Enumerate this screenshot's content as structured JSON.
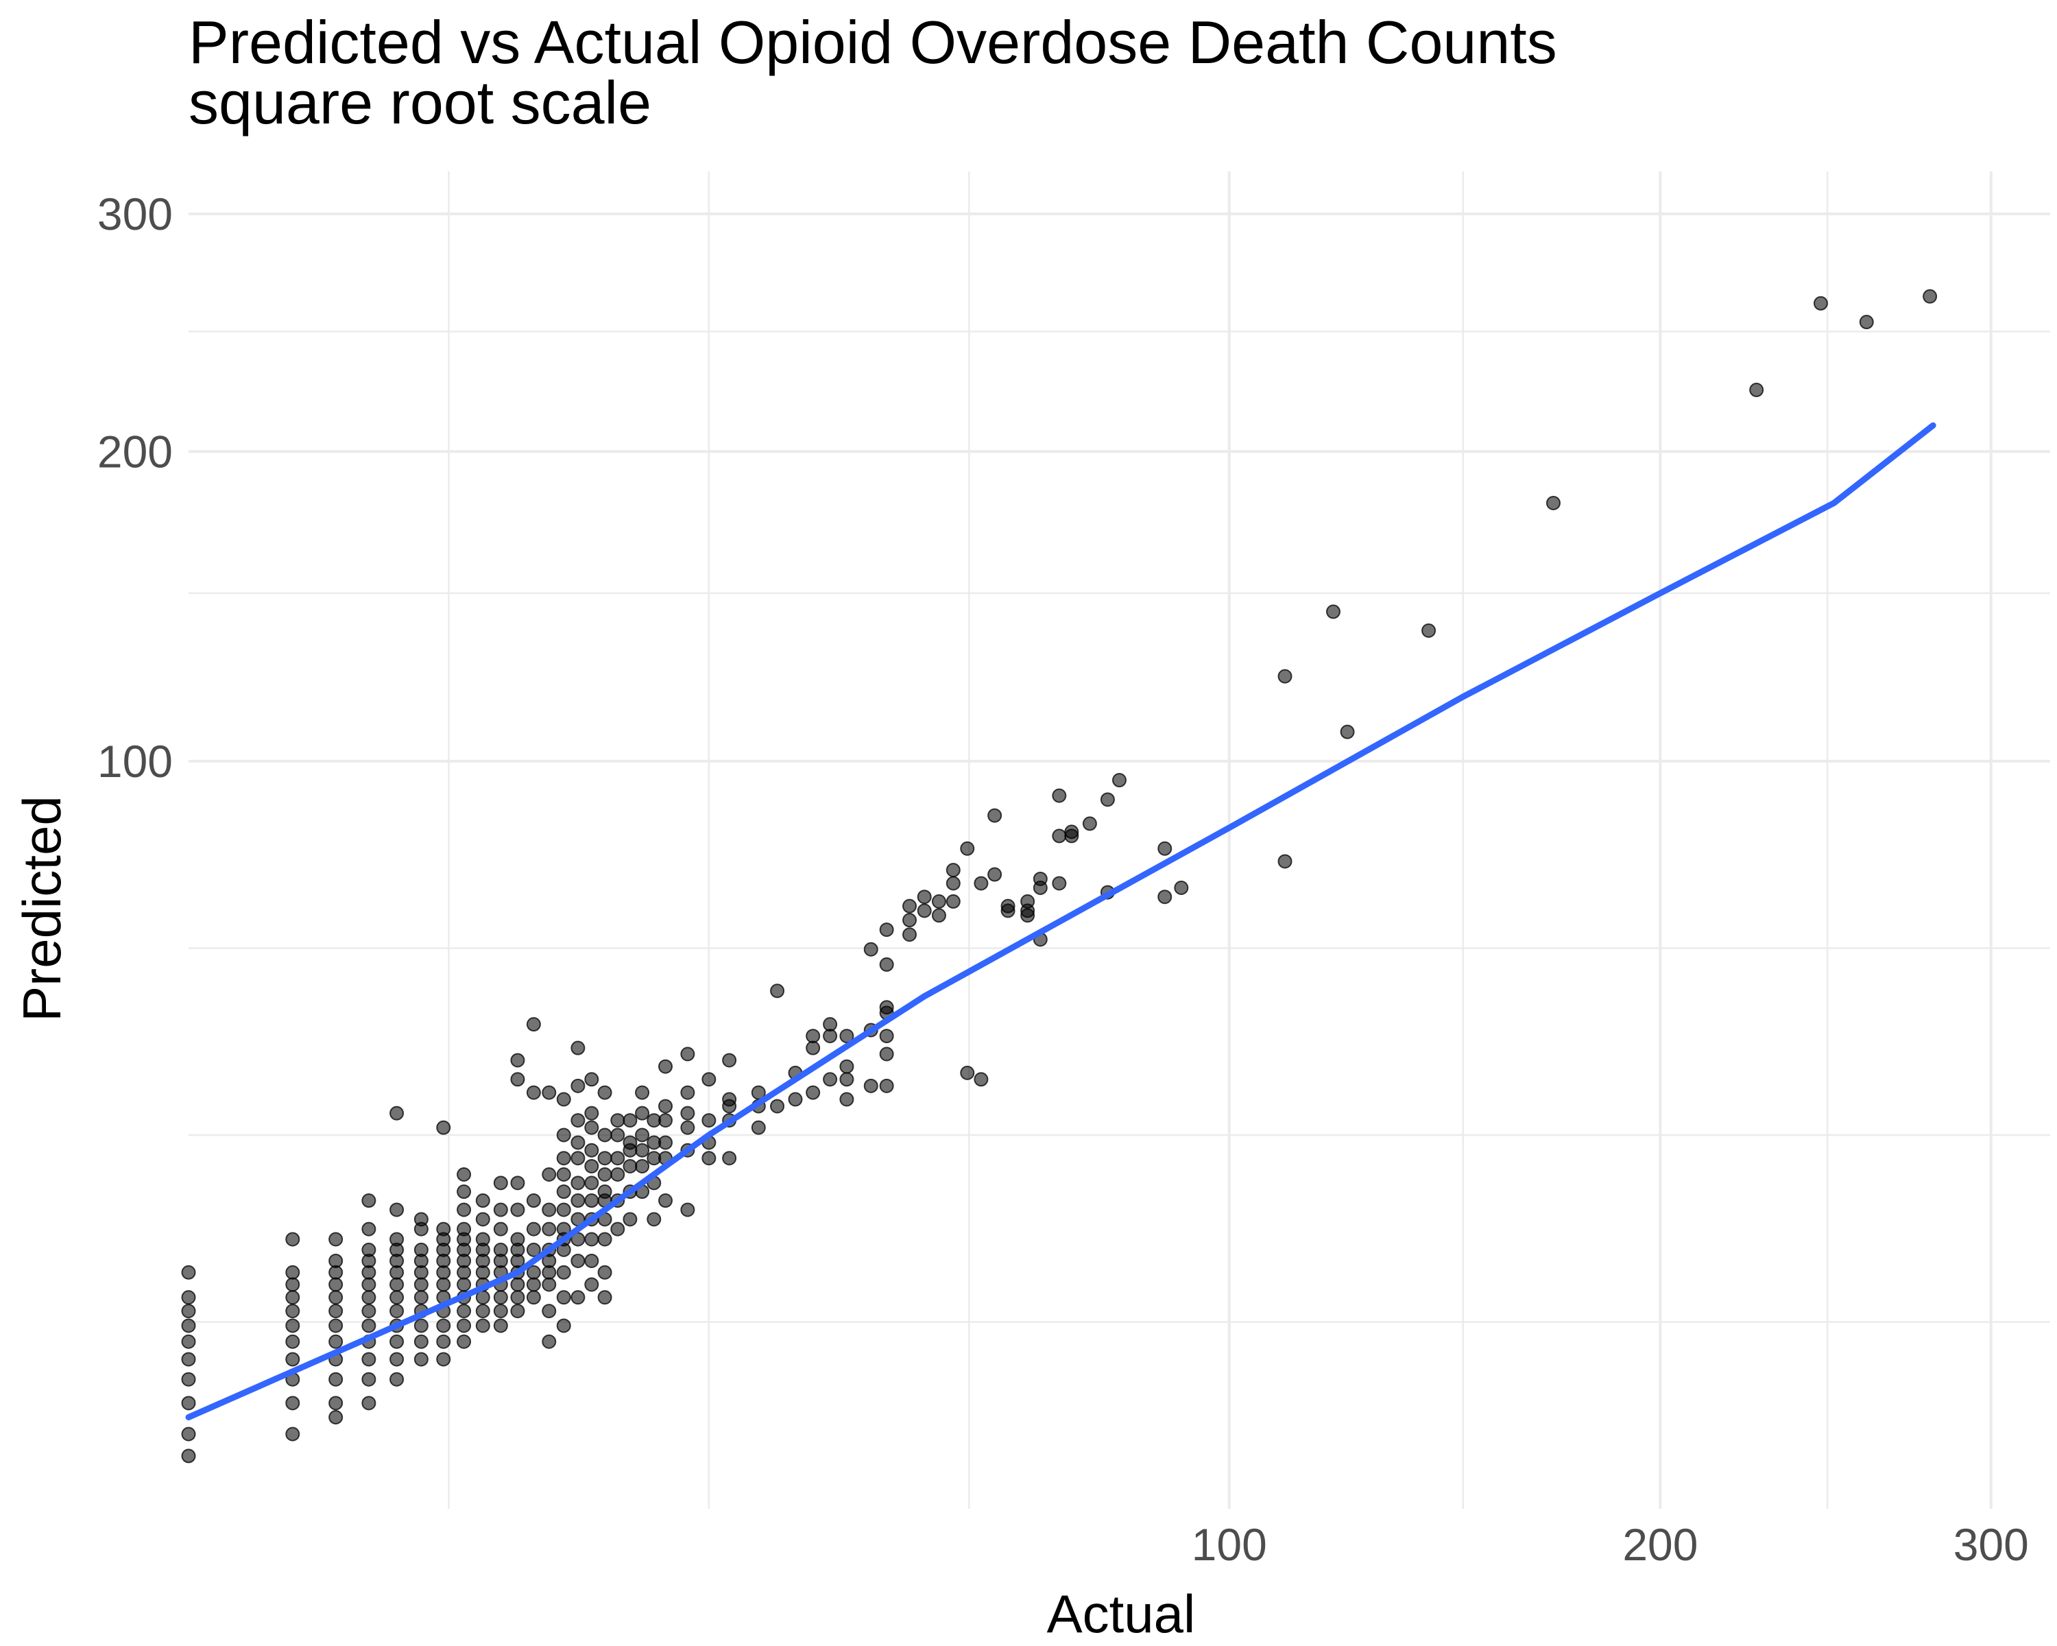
{
  "chart_data": {
    "type": "scatter",
    "title": "Predicted vs Actual Opioid Overdose Death Counts",
    "subtitle": "square root scale",
    "xlabel": "Actual",
    "ylabel": "Predicted",
    "x_scale": "sqrt",
    "y_scale": "sqrt",
    "xlim": [
      0,
      320
    ],
    "ylim": [
      0,
      320
    ],
    "x_ticks": [
      100,
      200,
      300
    ],
    "y_ticks": [
      100,
      200,
      300
    ],
    "grid": true,
    "legend": "none",
    "point_color": "#000000",
    "line_color": "#3366FF",
    "fit_line": {
      "x": [
        0,
        10,
        25,
        50,
        100,
        150,
        200,
        250,
        281
      ],
      "y": [
        1.5,
        10,
        25,
        47,
        83,
        118,
        150,
        181,
        210
      ]
    },
    "points": [
      {
        "x": 0,
        "y": 2
      },
      {
        "x": 0,
        "y": 3
      },
      {
        "x": 0,
        "y": 4
      },
      {
        "x": 0,
        "y": 5
      },
      {
        "x": 0,
        "y": 6
      },
      {
        "x": 0,
        "y": 7
      },
      {
        "x": 0,
        "y": 8
      },
      {
        "x": 0,
        "y": 10
      },
      {
        "x": 0,
        "y": 1
      },
      {
        "x": 0,
        "y": 0.5
      },
      {
        "x": 1,
        "y": 1
      },
      {
        "x": 1,
        "y": 2
      },
      {
        "x": 1,
        "y": 3
      },
      {
        "x": 1,
        "y": 4
      },
      {
        "x": 1,
        "y": 5
      },
      {
        "x": 1,
        "y": 6
      },
      {
        "x": 1,
        "y": 7
      },
      {
        "x": 1,
        "y": 8
      },
      {
        "x": 1,
        "y": 9
      },
      {
        "x": 1,
        "y": 10
      },
      {
        "x": 1,
        "y": 13
      },
      {
        "x": 2,
        "y": 1.5
      },
      {
        "x": 2,
        "y": 2
      },
      {
        "x": 2,
        "y": 3
      },
      {
        "x": 2,
        "y": 4
      },
      {
        "x": 2,
        "y": 5
      },
      {
        "x": 2,
        "y": 6
      },
      {
        "x": 2,
        "y": 7
      },
      {
        "x": 2,
        "y": 8
      },
      {
        "x": 2,
        "y": 9
      },
      {
        "x": 2,
        "y": 10
      },
      {
        "x": 2,
        "y": 11
      },
      {
        "x": 2,
        "y": 13
      },
      {
        "x": 3,
        "y": 2
      },
      {
        "x": 3,
        "y": 3
      },
      {
        "x": 3,
        "y": 4
      },
      {
        "x": 3,
        "y": 5
      },
      {
        "x": 3,
        "y": 6
      },
      {
        "x": 3,
        "y": 7
      },
      {
        "x": 3,
        "y": 8
      },
      {
        "x": 3,
        "y": 9
      },
      {
        "x": 3,
        "y": 10
      },
      {
        "x": 3,
        "y": 11
      },
      {
        "x": 3,
        "y": 12
      },
      {
        "x": 3,
        "y": 14
      },
      {
        "x": 3,
        "y": 17
      },
      {
        "x": 4,
        "y": 3
      },
      {
        "x": 4,
        "y": 4
      },
      {
        "x": 4,
        "y": 5
      },
      {
        "x": 4,
        "y": 6
      },
      {
        "x": 4,
        "y": 7
      },
      {
        "x": 4,
        "y": 8
      },
      {
        "x": 4,
        "y": 9
      },
      {
        "x": 4,
        "y": 10
      },
      {
        "x": 4,
        "y": 11
      },
      {
        "x": 4,
        "y": 12
      },
      {
        "x": 4,
        "y": 13
      },
      {
        "x": 4,
        "y": 16
      },
      {
        "x": 4,
        "y": 28
      },
      {
        "x": 5,
        "y": 4
      },
      {
        "x": 5,
        "y": 5
      },
      {
        "x": 5,
        "y": 6
      },
      {
        "x": 5,
        "y": 7
      },
      {
        "x": 5,
        "y": 8
      },
      {
        "x": 5,
        "y": 9
      },
      {
        "x": 5,
        "y": 10
      },
      {
        "x": 5,
        "y": 11
      },
      {
        "x": 5,
        "y": 12
      },
      {
        "x": 5,
        "y": 14
      },
      {
        "x": 5,
        "y": 15
      },
      {
        "x": 6,
        "y": 4
      },
      {
        "x": 6,
        "y": 5
      },
      {
        "x": 6,
        "y": 6
      },
      {
        "x": 6,
        "y": 7
      },
      {
        "x": 6,
        "y": 8
      },
      {
        "x": 6,
        "y": 9
      },
      {
        "x": 6,
        "y": 10
      },
      {
        "x": 6,
        "y": 11
      },
      {
        "x": 6,
        "y": 12
      },
      {
        "x": 6,
        "y": 13
      },
      {
        "x": 6,
        "y": 14
      },
      {
        "x": 6,
        "y": 26
      },
      {
        "x": 7,
        "y": 5
      },
      {
        "x": 7,
        "y": 6
      },
      {
        "x": 7,
        "y": 7
      },
      {
        "x": 7,
        "y": 8
      },
      {
        "x": 7,
        "y": 9
      },
      {
        "x": 7,
        "y": 10
      },
      {
        "x": 7,
        "y": 11
      },
      {
        "x": 7,
        "y": 12
      },
      {
        "x": 7,
        "y": 13
      },
      {
        "x": 7,
        "y": 14
      },
      {
        "x": 7,
        "y": 16
      },
      {
        "x": 7,
        "y": 18
      },
      {
        "x": 7,
        "y": 20
      },
      {
        "x": 8,
        "y": 6
      },
      {
        "x": 8,
        "y": 7
      },
      {
        "x": 8,
        "y": 8
      },
      {
        "x": 8,
        "y": 9
      },
      {
        "x": 8,
        "y": 10
      },
      {
        "x": 8,
        "y": 11
      },
      {
        "x": 8,
        "y": 12
      },
      {
        "x": 8,
        "y": 13
      },
      {
        "x": 8,
        "y": 15
      },
      {
        "x": 8,
        "y": 17
      },
      {
        "x": 9,
        "y": 6
      },
      {
        "x": 9,
        "y": 7
      },
      {
        "x": 9,
        "y": 8
      },
      {
        "x": 9,
        "y": 9
      },
      {
        "x": 9,
        "y": 10
      },
      {
        "x": 9,
        "y": 11
      },
      {
        "x": 9,
        "y": 12
      },
      {
        "x": 9,
        "y": 14
      },
      {
        "x": 9,
        "y": 16
      },
      {
        "x": 9,
        "y": 19
      },
      {
        "x": 10,
        "y": 7
      },
      {
        "x": 10,
        "y": 8
      },
      {
        "x": 10,
        "y": 9
      },
      {
        "x": 10,
        "y": 10
      },
      {
        "x": 10,
        "y": 11
      },
      {
        "x": 10,
        "y": 12
      },
      {
        "x": 10,
        "y": 13
      },
      {
        "x": 10,
        "y": 16
      },
      {
        "x": 10,
        "y": 19
      },
      {
        "x": 10,
        "y": 33
      },
      {
        "x": 10,
        "y": 36
      },
      {
        "x": 11,
        "y": 8
      },
      {
        "x": 11,
        "y": 9
      },
      {
        "x": 11,
        "y": 10
      },
      {
        "x": 11,
        "y": 12
      },
      {
        "x": 11,
        "y": 14
      },
      {
        "x": 11,
        "y": 17
      },
      {
        "x": 11,
        "y": 31
      },
      {
        "x": 11,
        "y": 42
      },
      {
        "x": 12,
        "y": 5
      },
      {
        "x": 12,
        "y": 7
      },
      {
        "x": 12,
        "y": 9
      },
      {
        "x": 12,
        "y": 10
      },
      {
        "x": 12,
        "y": 11
      },
      {
        "x": 12,
        "y": 12
      },
      {
        "x": 12,
        "y": 14
      },
      {
        "x": 12,
        "y": 16
      },
      {
        "x": 12,
        "y": 20
      },
      {
        "x": 12,
        "y": 31
      },
      {
        "x": 13,
        "y": 6
      },
      {
        "x": 13,
        "y": 8
      },
      {
        "x": 13,
        "y": 10
      },
      {
        "x": 13,
        "y": 12
      },
      {
        "x": 13,
        "y": 13
      },
      {
        "x": 13,
        "y": 14
      },
      {
        "x": 13,
        "y": 16
      },
      {
        "x": 13,
        "y": 18
      },
      {
        "x": 13,
        "y": 20
      },
      {
        "x": 13,
        "y": 22
      },
      {
        "x": 13,
        "y": 25
      },
      {
        "x": 13,
        "y": 30
      },
      {
        "x": 14,
        "y": 8
      },
      {
        "x": 14,
        "y": 11
      },
      {
        "x": 14,
        "y": 13
      },
      {
        "x": 14,
        "y": 15
      },
      {
        "x": 14,
        "y": 17
      },
      {
        "x": 14,
        "y": 19
      },
      {
        "x": 14,
        "y": 22
      },
      {
        "x": 14,
        "y": 24
      },
      {
        "x": 14,
        "y": 27
      },
      {
        "x": 14,
        "y": 32
      },
      {
        "x": 14,
        "y": 38
      },
      {
        "x": 15,
        "y": 9
      },
      {
        "x": 15,
        "y": 11
      },
      {
        "x": 15,
        "y": 13
      },
      {
        "x": 15,
        "y": 15
      },
      {
        "x": 15,
        "y": 17
      },
      {
        "x": 15,
        "y": 19
      },
      {
        "x": 15,
        "y": 21
      },
      {
        "x": 15,
        "y": 23
      },
      {
        "x": 15,
        "y": 26
      },
      {
        "x": 15,
        "y": 28
      },
      {
        "x": 15,
        "y": 33
      },
      {
        "x": 16,
        "y": 8
      },
      {
        "x": 16,
        "y": 10
      },
      {
        "x": 16,
        "y": 13
      },
      {
        "x": 16,
        "y": 15
      },
      {
        "x": 16,
        "y": 17
      },
      {
        "x": 16,
        "y": 18
      },
      {
        "x": 16,
        "y": 20
      },
      {
        "x": 16,
        "y": 22
      },
      {
        "x": 16,
        "y": 25
      },
      {
        "x": 16,
        "y": 31
      },
      {
        "x": 17,
        "y": 14
      },
      {
        "x": 17,
        "y": 17
      },
      {
        "x": 17,
        "y": 20
      },
      {
        "x": 17,
        "y": 22
      },
      {
        "x": 17,
        "y": 25
      },
      {
        "x": 17,
        "y": 27
      },
      {
        "x": 18,
        "y": 15
      },
      {
        "x": 18,
        "y": 18
      },
      {
        "x": 18,
        "y": 21
      },
      {
        "x": 18,
        "y": 23
      },
      {
        "x": 18,
        "y": 24
      },
      {
        "x": 18,
        "y": 27
      },
      {
        "x": 19,
        "y": 18
      },
      {
        "x": 19,
        "y": 21
      },
      {
        "x": 19,
        "y": 23
      },
      {
        "x": 19,
        "y": 25
      },
      {
        "x": 19,
        "y": 28
      },
      {
        "x": 19,
        "y": 31
      },
      {
        "x": 20,
        "y": 15
      },
      {
        "x": 20,
        "y": 19
      },
      {
        "x": 20,
        "y": 22
      },
      {
        "x": 20,
        "y": 24
      },
      {
        "x": 20,
        "y": 27
      },
      {
        "x": 21,
        "y": 17
      },
      {
        "x": 21,
        "y": 22
      },
      {
        "x": 21,
        "y": 24
      },
      {
        "x": 21,
        "y": 27
      },
      {
        "x": 21,
        "y": 29
      },
      {
        "x": 21,
        "y": 35
      },
      {
        "x": 23,
        "y": 16
      },
      {
        "x": 23,
        "y": 23
      },
      {
        "x": 23,
        "y": 26
      },
      {
        "x": 23,
        "y": 28
      },
      {
        "x": 23,
        "y": 31
      },
      {
        "x": 23,
        "y": 37
      },
      {
        "x": 25,
        "y": 22
      },
      {
        "x": 25,
        "y": 24
      },
      {
        "x": 25,
        "y": 27
      },
      {
        "x": 25,
        "y": 33
      },
      {
        "x": 27,
        "y": 22
      },
      {
        "x": 27,
        "y": 27
      },
      {
        "x": 27,
        "y": 30
      },
      {
        "x": 27,
        "y": 36
      },
      {
        "x": 27,
        "y": 29
      },
      {
        "x": 30,
        "y": 26
      },
      {
        "x": 30,
        "y": 29
      },
      {
        "x": 30,
        "y": 31
      },
      {
        "x": 32,
        "y": 29
      },
      {
        "x": 32,
        "y": 48
      },
      {
        "x": 34,
        "y": 30
      },
      {
        "x": 34,
        "y": 34
      },
      {
        "x": 36,
        "y": 31
      },
      {
        "x": 36,
        "y": 38
      },
      {
        "x": 36,
        "y": 40
      },
      {
        "x": 38,
        "y": 33
      },
      {
        "x": 38,
        "y": 40
      },
      {
        "x": 38,
        "y": 42
      },
      {
        "x": 40,
        "y": 30
      },
      {
        "x": 40,
        "y": 33
      },
      {
        "x": 40,
        "y": 35
      },
      {
        "x": 40,
        "y": 40
      },
      {
        "x": 43,
        "y": 32
      },
      {
        "x": 43,
        "y": 41
      },
      {
        "x": 43,
        "y": 56
      },
      {
        "x": 45,
        "y": 32
      },
      {
        "x": 45,
        "y": 37
      },
      {
        "x": 45,
        "y": 40
      },
      {
        "x": 45,
        "y": 45
      },
      {
        "x": 45,
        "y": 44
      },
      {
        "x": 45,
        "y": 53
      },
      {
        "x": 45,
        "y": 60
      },
      {
        "x": 48,
        "y": 62
      },
      {
        "x": 48,
        "y": 65
      },
      {
        "x": 48,
        "y": 59
      },
      {
        "x": 50,
        "y": 64
      },
      {
        "x": 50,
        "y": 67
      },
      {
        "x": 52,
        "y": 63
      },
      {
        "x": 52,
        "y": 66
      },
      {
        "x": 54,
        "y": 66
      },
      {
        "x": 54,
        "y": 70
      },
      {
        "x": 54,
        "y": 73
      },
      {
        "x": 56,
        "y": 78
      },
      {
        "x": 56,
        "y": 34
      },
      {
        "x": 58,
        "y": 70
      },
      {
        "x": 58,
        "y": 33
      },
      {
        "x": 60,
        "y": 86
      },
      {
        "x": 60,
        "y": 72
      },
      {
        "x": 62,
        "y": 64
      },
      {
        "x": 62,
        "y": 65
      },
      {
        "x": 65,
        "y": 63
      },
      {
        "x": 65,
        "y": 66
      },
      {
        "x": 65,
        "y": 64
      },
      {
        "x": 67,
        "y": 71
      },
      {
        "x": 67,
        "y": 69
      },
      {
        "x": 67,
        "y": 58
      },
      {
        "x": 70,
        "y": 91
      },
      {
        "x": 70,
        "y": 81
      },
      {
        "x": 70,
        "y": 70
      },
      {
        "x": 72,
        "y": 82
      },
      {
        "x": 72,
        "y": 81
      },
      {
        "x": 75,
        "y": 84
      },
      {
        "x": 78,
        "y": 68
      },
      {
        "x": 78,
        "y": 90
      },
      {
        "x": 80,
        "y": 95
      },
      {
        "x": 88,
        "y": 67
      },
      {
        "x": 88,
        "y": 78
      },
      {
        "x": 91,
        "y": 69
      },
      {
        "x": 111,
        "y": 124
      },
      {
        "x": 111,
        "y": 75
      },
      {
        "x": 121,
        "y": 144
      },
      {
        "x": 124,
        "y": 108
      },
      {
        "x": 142,
        "y": 138
      },
      {
        "x": 172,
        "y": 181
      },
      {
        "x": 227,
        "y": 224
      },
      {
        "x": 246,
        "y": 260
      },
      {
        "x": 260,
        "y": 252
      },
      {
        "x": 280,
        "y": 263
      }
    ]
  }
}
